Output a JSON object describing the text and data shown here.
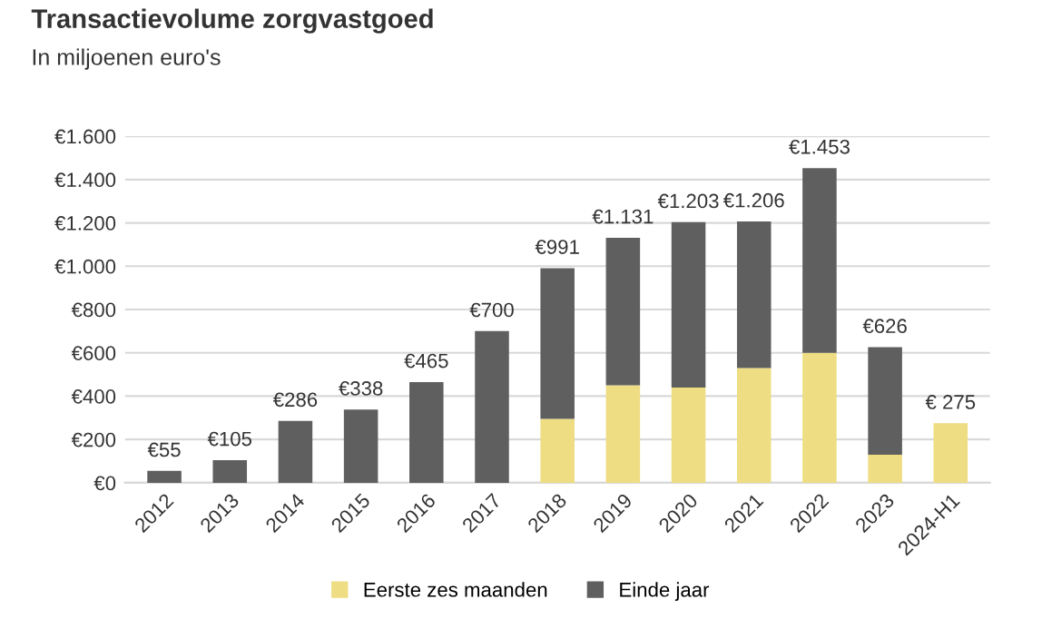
{
  "chart_data": {
    "type": "bar",
    "title": "Transactievolume zorgvastgoed",
    "subtitle": "In miljoenen euro's",
    "stacked": true,
    "categories": [
      "2012",
      "2013",
      "2014",
      "2015",
      "2016",
      "2017",
      "2018",
      "2019",
      "2020",
      "2021",
      "2022",
      "2023",
      "2024-H1"
    ],
    "series": [
      {
        "name": "Eerste zes maanden",
        "color": "#eedd82",
        "values": [
          null,
          null,
          null,
          null,
          null,
          null,
          295,
          450,
          440,
          530,
          600,
          130,
          275
        ]
      },
      {
        "name": "Einde jaar",
        "color": "#5f5f5f",
        "values": [
          55,
          105,
          286,
          338,
          465,
          700,
          696,
          681,
          763,
          676,
          853,
          496,
          null
        ]
      }
    ],
    "totals": [
      "€55",
      "€105",
      "€286",
      "€338",
      "€465",
      "€700",
      "€991",
      "€1.131",
      "€1.203",
      "€1.206",
      "€1.453",
      "€626",
      "€ 275"
    ],
    "ylim": [
      0,
      1600
    ],
    "yticks": [
      {
        "value": 0,
        "label": "€0"
      },
      {
        "value": 200,
        "label": "€200"
      },
      {
        "value": 400,
        "label": "€400"
      },
      {
        "value": 600,
        "label": "€600"
      },
      {
        "value": 800,
        "label": "€800"
      },
      {
        "value": 1000,
        "label": "€1.000"
      },
      {
        "value": 1200,
        "label": "€1.200"
      },
      {
        "value": 1400,
        "label": "€1.400"
      },
      {
        "value": 1600,
        "label": "€1.600"
      }
    ],
    "grid": "y",
    "legend": "bottom"
  }
}
